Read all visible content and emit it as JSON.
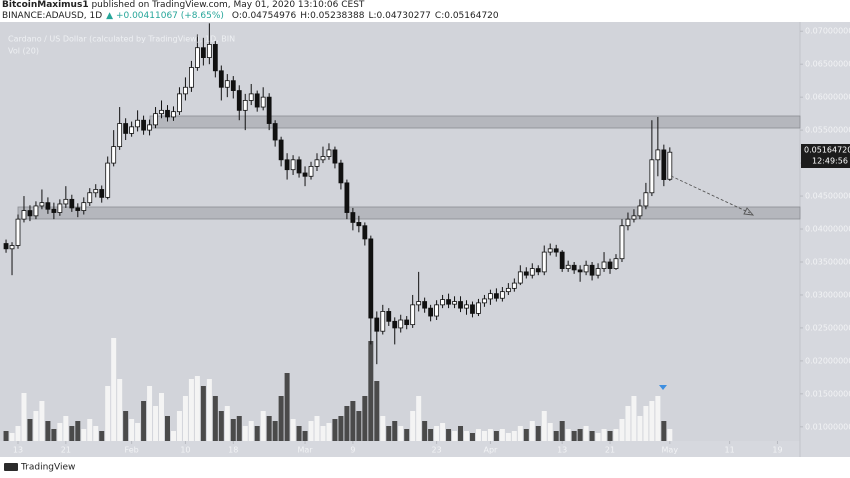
{
  "chart_data": {
    "type": "candlestick",
    "header": {
      "author": "BitcoinMaximus1",
      "published": "published on TradingView.com, May 01, 2020 13:10:06 CEST",
      "symbol": "BINANCE:ADAUSD, 1D",
      "change": "+0.00411067 (+8.65%)",
      "open": "O:0.04754976",
      "high": "H:0.05238388",
      "low": "L:0.04730277",
      "close": "C:0.05164720"
    },
    "legend": {
      "title": "Cardano / US Dollar (calculated by TradingView), 1D, BIN",
      "vol": "Vol (20)"
    },
    "last_price": "0.05164720",
    "countdown": "12:49:56",
    "brand": "TradingView",
    "up_color": "#ffffff",
    "down_color": "#111111",
    "wick_color": "#111111",
    "volume_up_color": "#f4f4f4",
    "volume_down_color": "#4a4a4a",
    "ylim": [
      0.008,
      0.0714
    ],
    "yticks": [
      {
        "value": 0.01,
        "label": "0.01000000"
      },
      {
        "value": 0.015,
        "label": "0.01500000"
      },
      {
        "value": 0.02,
        "label": "0.02000000"
      },
      {
        "value": 0.025,
        "label": "0.02500000"
      },
      {
        "value": 0.03,
        "label": "0.03000000"
      },
      {
        "value": 0.035,
        "label": "0.03500000"
      },
      {
        "value": 0.04,
        "label": "0.04000000"
      },
      {
        "value": 0.045,
        "label": "0.04500000"
      },
      {
        "value": 0.05,
        "label": "0.05000000"
      },
      {
        "value": 0.055,
        "label": "0.05500000"
      },
      {
        "value": 0.06,
        "label": "0.06000000"
      },
      {
        "value": 0.065,
        "label": "0.06500000"
      },
      {
        "value": 0.07,
        "label": "0.07000000"
      }
    ],
    "xticks": [
      {
        "value": "2020-01-13",
        "label": "13"
      },
      {
        "value": "2020-01-21",
        "label": "21"
      },
      {
        "value": "2020-02-01",
        "label": "Feb"
      },
      {
        "value": "2020-02-10",
        "label": "10"
      },
      {
        "value": "2020-02-18",
        "label": "18"
      },
      {
        "value": "2020-03-01",
        "label": "Mar"
      },
      {
        "value": "2020-03-09",
        "label": "9"
      },
      {
        "value": "2020-03-23",
        "label": "23"
      },
      {
        "value": "2020-04-01",
        "label": "Apr"
      },
      {
        "value": "2020-04-13",
        "label": "13"
      },
      {
        "value": "2020-04-21",
        "label": "21"
      },
      {
        "value": "2020-05-01",
        "label": "May"
      },
      {
        "value": "2020-05-11",
        "label": "11"
      },
      {
        "value": "2020-05-19",
        "label": "19"
      }
    ],
    "vlim": [
      0,
      120
    ],
    "x": [
      "2020-01-11",
      "2020-01-12",
      "2020-01-13",
      "2020-01-14",
      "2020-01-15",
      "2020-01-16",
      "2020-01-17",
      "2020-01-18",
      "2020-01-19",
      "2020-01-20",
      "2020-01-21",
      "2020-01-22",
      "2020-01-23",
      "2020-01-24",
      "2020-01-25",
      "2020-01-26",
      "2020-01-27",
      "2020-01-28",
      "2020-01-29",
      "2020-01-30",
      "2020-01-31",
      "2020-02-01",
      "2020-02-02",
      "2020-02-03",
      "2020-02-04",
      "2020-02-05",
      "2020-02-06",
      "2020-02-07",
      "2020-02-08",
      "2020-02-09",
      "2020-02-10",
      "2020-02-11",
      "2020-02-12",
      "2020-02-13",
      "2020-02-14",
      "2020-02-15",
      "2020-02-16",
      "2020-02-17",
      "2020-02-18",
      "2020-02-19",
      "2020-02-20",
      "2020-02-21",
      "2020-02-22",
      "2020-02-23",
      "2020-02-24",
      "2020-02-25",
      "2020-02-26",
      "2020-02-27",
      "2020-02-28",
      "2020-02-29",
      "2020-03-01",
      "2020-03-02",
      "2020-03-03",
      "2020-03-04",
      "2020-03-05",
      "2020-03-06",
      "2020-03-07",
      "2020-03-08",
      "2020-03-09",
      "2020-03-10",
      "2020-03-11",
      "2020-03-12",
      "2020-03-13",
      "2020-03-14",
      "2020-03-15",
      "2020-03-16",
      "2020-03-17",
      "2020-03-18",
      "2020-03-19",
      "2020-03-20",
      "2020-03-21",
      "2020-03-22",
      "2020-03-23",
      "2020-03-24",
      "2020-03-25",
      "2020-03-26",
      "2020-03-27",
      "2020-03-28",
      "2020-03-29",
      "2020-03-30",
      "2020-03-31",
      "2020-04-01",
      "2020-04-02",
      "2020-04-03",
      "2020-04-04",
      "2020-04-05",
      "2020-04-06",
      "2020-04-07",
      "2020-04-08",
      "2020-04-09",
      "2020-04-10",
      "2020-04-11",
      "2020-04-12",
      "2020-04-13",
      "2020-04-14",
      "2020-04-15",
      "2020-04-16",
      "2020-04-17",
      "2020-04-18",
      "2020-04-19",
      "2020-04-20",
      "2020-04-21",
      "2020-04-22",
      "2020-04-23",
      "2020-04-24",
      "2020-04-25",
      "2020-04-26",
      "2020-04-27",
      "2020-04-28",
      "2020-04-29",
      "2020-04-30",
      "2020-05-01"
    ],
    "ohlc": [
      [
        0.0378,
        0.0384,
        0.0364,
        0.037
      ],
      [
        0.037,
        0.038,
        0.033,
        0.0375
      ],
      [
        0.0375,
        0.0422,
        0.037,
        0.0415
      ],
      [
        0.0415,
        0.045,
        0.041,
        0.0428
      ],
      [
        0.0428,
        0.0436,
        0.0412,
        0.042
      ],
      [
        0.042,
        0.0442,
        0.0415,
        0.0435
      ],
      [
        0.0435,
        0.046,
        0.043,
        0.044
      ],
      [
        0.044,
        0.0448,
        0.0423,
        0.043
      ],
      [
        0.043,
        0.044,
        0.0415,
        0.0425
      ],
      [
        0.0425,
        0.0445,
        0.042,
        0.0438
      ],
      [
        0.0438,
        0.0465,
        0.0432,
        0.0445
      ],
      [
        0.0445,
        0.0452,
        0.0426,
        0.0432
      ],
      [
        0.0432,
        0.0439,
        0.0418,
        0.0428
      ],
      [
        0.0428,
        0.0448,
        0.0422,
        0.044
      ],
      [
        0.044,
        0.0462,
        0.0435,
        0.0455
      ],
      [
        0.0455,
        0.0468,
        0.0448,
        0.046
      ],
      [
        0.046,
        0.0466,
        0.044,
        0.0448
      ],
      [
        0.0448,
        0.051,
        0.0445,
        0.05
      ],
      [
        0.05,
        0.055,
        0.0495,
        0.0525
      ],
      [
        0.0525,
        0.0585,
        0.052,
        0.056
      ],
      [
        0.056,
        0.0568,
        0.0535,
        0.0545
      ],
      [
        0.0545,
        0.0563,
        0.054,
        0.0555
      ],
      [
        0.0555,
        0.058,
        0.0548,
        0.0565
      ],
      [
        0.0565,
        0.0572,
        0.0543,
        0.055
      ],
      [
        0.055,
        0.0566,
        0.0542,
        0.0558
      ],
      [
        0.0558,
        0.0585,
        0.0553,
        0.0575
      ],
      [
        0.0575,
        0.0595,
        0.0568,
        0.058
      ],
      [
        0.058,
        0.0588,
        0.0563,
        0.057
      ],
      [
        0.057,
        0.0586,
        0.0564,
        0.0578
      ],
      [
        0.0578,
        0.0615,
        0.0573,
        0.0605
      ],
      [
        0.0605,
        0.063,
        0.0595,
        0.0615
      ],
      [
        0.0615,
        0.0655,
        0.0608,
        0.0645
      ],
      [
        0.0645,
        0.0695,
        0.064,
        0.0675
      ],
      [
        0.0675,
        0.069,
        0.0648,
        0.066
      ],
      [
        0.066,
        0.0712,
        0.065,
        0.068
      ],
      [
        0.068,
        0.0685,
        0.063,
        0.064
      ],
      [
        0.064,
        0.0648,
        0.0595,
        0.0615
      ],
      [
        0.0615,
        0.0635,
        0.06,
        0.0625
      ],
      [
        0.0625,
        0.0632,
        0.0598,
        0.061
      ],
      [
        0.061,
        0.0618,
        0.0565,
        0.058
      ],
      [
        0.058,
        0.0605,
        0.055,
        0.0595
      ],
      [
        0.0595,
        0.062,
        0.0588,
        0.0605
      ],
      [
        0.0605,
        0.061,
        0.0578,
        0.0585
      ],
      [
        0.0585,
        0.0615,
        0.058,
        0.06
      ],
      [
        0.06,
        0.0606,
        0.055,
        0.056
      ],
      [
        0.056,
        0.0565,
        0.0525,
        0.0535
      ],
      [
        0.0535,
        0.054,
        0.0495,
        0.0505
      ],
      [
        0.0505,
        0.0515,
        0.0475,
        0.049
      ],
      [
        0.049,
        0.0512,
        0.0482,
        0.0505
      ],
      [
        0.0505,
        0.051,
        0.0478,
        0.0485
      ],
      [
        0.0485,
        0.0495,
        0.0465,
        0.048
      ],
      [
        0.048,
        0.0502,
        0.0475,
        0.0495
      ],
      [
        0.0495,
        0.0515,
        0.0488,
        0.0505
      ],
      [
        0.0505,
        0.0525,
        0.05,
        0.051
      ],
      [
        0.051,
        0.053,
        0.0505,
        0.052
      ],
      [
        0.052,
        0.0525,
        0.0492,
        0.05
      ],
      [
        0.05,
        0.0505,
        0.046,
        0.047
      ],
      [
        0.047,
        0.0475,
        0.0415,
        0.0425
      ],
      [
        0.0425,
        0.0432,
        0.0398,
        0.041
      ],
      [
        0.041,
        0.042,
        0.0395,
        0.0405
      ],
      [
        0.0405,
        0.041,
        0.0375,
        0.0385
      ],
      [
        0.0385,
        0.039,
        0.0225,
        0.0265
      ],
      [
        0.0265,
        0.0275,
        0.0195,
        0.0245
      ],
      [
        0.0245,
        0.0285,
        0.024,
        0.0275
      ],
      [
        0.0275,
        0.028,
        0.0253,
        0.026
      ],
      [
        0.026,
        0.0266,
        0.0225,
        0.025
      ],
      [
        0.025,
        0.027,
        0.0243,
        0.0262
      ],
      [
        0.0262,
        0.0268,
        0.0248,
        0.0255
      ],
      [
        0.0255,
        0.03,
        0.025,
        0.0285
      ],
      [
        0.0285,
        0.0335,
        0.0275,
        0.029
      ],
      [
        0.029,
        0.0296,
        0.0273,
        0.028
      ],
      [
        0.028,
        0.0285,
        0.026,
        0.0268
      ],
      [
        0.0268,
        0.0292,
        0.0262,
        0.0285
      ],
      [
        0.0285,
        0.03,
        0.028,
        0.0293
      ],
      [
        0.0293,
        0.0302,
        0.028,
        0.0286
      ],
      [
        0.0286,
        0.0298,
        0.028,
        0.029
      ],
      [
        0.029,
        0.0298,
        0.0274,
        0.028
      ],
      [
        0.028,
        0.0292,
        0.027,
        0.0285
      ],
      [
        0.0285,
        0.029,
        0.0266,
        0.0272
      ],
      [
        0.0272,
        0.0294,
        0.0268,
        0.0288
      ],
      [
        0.0288,
        0.03,
        0.0282,
        0.0294
      ],
      [
        0.0294,
        0.0308,
        0.0285,
        0.0302
      ],
      [
        0.0302,
        0.031,
        0.029,
        0.0295
      ],
      [
        0.0295,
        0.0312,
        0.029,
        0.0305
      ],
      [
        0.0305,
        0.0318,
        0.03,
        0.031
      ],
      [
        0.031,
        0.0325,
        0.0305,
        0.0318
      ],
      [
        0.0318,
        0.0345,
        0.0315,
        0.0335
      ],
      [
        0.0335,
        0.0342,
        0.0325,
        0.033
      ],
      [
        0.033,
        0.0348,
        0.0325,
        0.034
      ],
      [
        0.034,
        0.0345,
        0.033,
        0.0335
      ],
      [
        0.0335,
        0.0375,
        0.033,
        0.0365
      ],
      [
        0.0365,
        0.0378,
        0.036,
        0.037
      ],
      [
        0.037,
        0.0376,
        0.0358,
        0.0365
      ],
      [
        0.0365,
        0.0368,
        0.0335,
        0.034
      ],
      [
        0.034,
        0.0352,
        0.0335,
        0.0345
      ],
      [
        0.0345,
        0.035,
        0.0332,
        0.0338
      ],
      [
        0.0338,
        0.0345,
        0.032,
        0.0335
      ],
      [
        0.0335,
        0.0352,
        0.033,
        0.0345
      ],
      [
        0.0345,
        0.035,
        0.0322,
        0.033
      ],
      [
        0.033,
        0.0348,
        0.0325,
        0.034
      ],
      [
        0.034,
        0.0365,
        0.0335,
        0.035
      ],
      [
        0.035,
        0.0355,
        0.0332,
        0.034
      ],
      [
        0.034,
        0.0362,
        0.0338,
        0.0355
      ],
      [
        0.0355,
        0.0415,
        0.035,
        0.0405
      ],
      [
        0.0405,
        0.0425,
        0.0398,
        0.0415
      ],
      [
        0.0415,
        0.043,
        0.041,
        0.042
      ],
      [
        0.042,
        0.0445,
        0.0415,
        0.0435
      ],
      [
        0.0435,
        0.047,
        0.043,
        0.0455
      ],
      [
        0.0455,
        0.0565,
        0.045,
        0.0505
      ],
      [
        0.0505,
        0.057,
        0.048,
        0.052
      ],
      [
        0.052,
        0.0528,
        0.0465,
        0.0475
      ],
      [
        0.04754976,
        0.05238388,
        0.04730277,
        0.0516472
      ]
    ],
    "volume": [
      10,
      8,
      15,
      48,
      22,
      30,
      40,
      20,
      12,
      18,
      25,
      15,
      20,
      12,
      22,
      15,
      10,
      55,
      103,
      62,
      30,
      22,
      18,
      40,
      55,
      35,
      48,
      25,
      10,
      30,
      45,
      62,
      65,
      55,
      62,
      45,
      30,
      35,
      22,
      25,
      15,
      20,
      15,
      30,
      25,
      20,
      45,
      68,
      22,
      15,
      10,
      20,
      25,
      15,
      18,
      22,
      25,
      35,
      40,
      30,
      45,
      100,
      60,
      25,
      15,
      20,
      15,
      12,
      30,
      45,
      20,
      12,
      15,
      18,
      12,
      10,
      15,
      10,
      8,
      12,
      10,
      12,
      10,
      12,
      8,
      10,
      15,
      12,
      20,
      15,
      30,
      18,
      10,
      20,
      12,
      10,
      12,
      15,
      10,
      8,
      12,
      10,
      12,
      22,
      35,
      45,
      25,
      35,
      40,
      45,
      20,
      12
    ]
  }
}
